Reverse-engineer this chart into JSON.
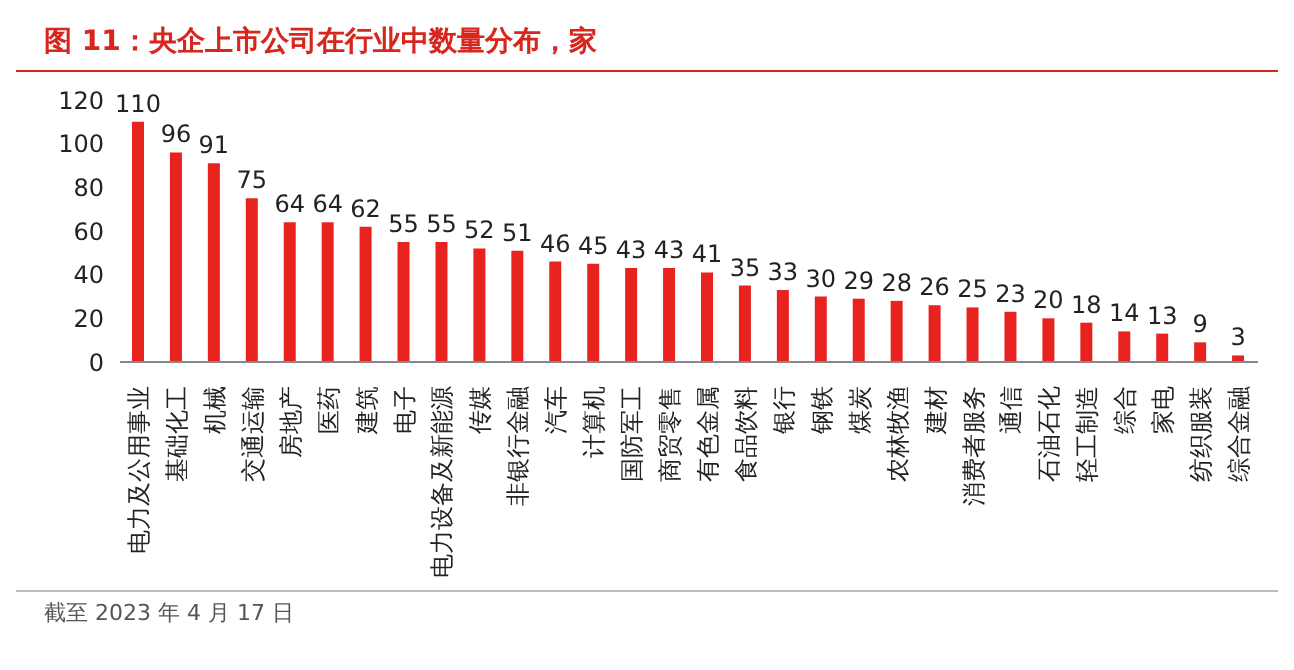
{
  "chart_data": {
    "type": "bar",
    "title": "图 11：央企上市公司在行业中数量分布，家",
    "categories": [
      "电力及公用事业",
      "基础化工",
      "机械",
      "交通运输",
      "房地产",
      "医药",
      "建筑",
      "电子",
      "电力设备及新能源",
      "传媒",
      "非银行金融",
      "汽车",
      "计算机",
      "国防军工",
      "商贸零售",
      "有色金属",
      "食品饮料",
      "银行",
      "钢铁",
      "煤炭",
      "农林牧渔",
      "建材",
      "消费者服务",
      "通信",
      "石油石化",
      "轻工制造",
      "综合",
      "家电",
      "纺织服装",
      "综合金融"
    ],
    "values": [
      110,
      96,
      91,
      75,
      64,
      64,
      62,
      55,
      55,
      52,
      51,
      46,
      45,
      43,
      43,
      41,
      35,
      33,
      30,
      29,
      28,
      26,
      25,
      23,
      20,
      18,
      14,
      13,
      9,
      3
    ],
    "color": "#e8231f",
    "ylim": [
      0,
      120
    ],
    "yticks": [
      0,
      20,
      40,
      60,
      80,
      100,
      120
    ],
    "data_labels": true,
    "annotations": [
      "截至 2023 年 4 月 17 日"
    ]
  }
}
